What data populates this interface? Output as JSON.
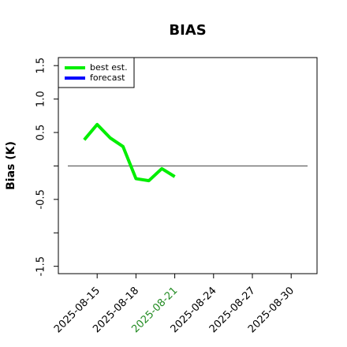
{
  "chart_data": {
    "type": "line",
    "title": "BIAS",
    "y_label": "Bias (K)",
    "x": [
      "2025-08-14",
      "2025-08-15",
      "2025-08-16",
      "2025-08-17",
      "2025-08-18",
      "2025-08-19",
      "2025-08-20",
      "2025-08-21"
    ],
    "series": [
      {
        "name": "best est.",
        "color": "#00ee00",
        "values": [
          0.39,
          0.62,
          0.42,
          0.29,
          -0.19,
          -0.22,
          -0.04,
          -0.16
        ]
      },
      {
        "name": "forecast",
        "color": "#0000ff",
        "values": [
          null,
          null,
          null,
          null,
          null,
          null,
          null,
          null
        ]
      }
    ],
    "xlim": [
      "2025-08-12",
      "2025-09-01"
    ],
    "xticks": [
      "2025-08-15",
      "2025-08-18",
      "2025-08-21",
      "2025-08-24",
      "2025-08-27",
      "2025-08-30"
    ],
    "highlight_tick": "2025-08-21",
    "highlight_color": "#228b22",
    "ylim": [
      -1.61,
      1.62
    ],
    "yticks": [
      {
        "value": -1.5,
        "label": "-1.5"
      },
      {
        "value": -1,
        "label": null
      },
      {
        "value": -0.5,
        "label": "-0.5"
      },
      {
        "value": 0,
        "label": null
      },
      {
        "value": 0.5,
        "label": "0.5"
      },
      {
        "value": 1,
        "label": "1.0"
      },
      {
        "value": 1.5,
        "label": "1.5"
      }
    ],
    "reference_line": 0,
    "reference_color": "#555555",
    "legend": "top-left"
  }
}
